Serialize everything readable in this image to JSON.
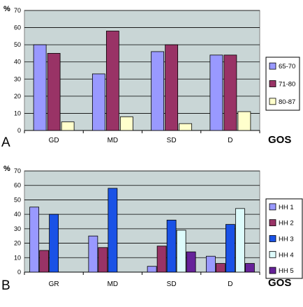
{
  "chart_data": [
    {
      "type": "bar",
      "panel_label": "A",
      "ylabel": "%",
      "xlabel": "GOS",
      "ylim": [
        0,
        70
      ],
      "yticks": [
        0,
        10,
        20,
        30,
        40,
        50,
        60,
        70
      ],
      "grid": true,
      "legend_position": "right",
      "categories": [
        "GD",
        "MD",
        "SD",
        "D"
      ],
      "series": [
        {
          "name": "65-70",
          "color": "#9999ff",
          "values": [
            50,
            33,
            46,
            44
          ]
        },
        {
          "name": "71-80",
          "color": "#993366",
          "values": [
            45,
            58,
            50,
            44
          ]
        },
        {
          "name": "80-87",
          "color": "#ffffcc",
          "values": [
            5,
            8,
            4,
            11
          ]
        }
      ]
    },
    {
      "type": "bar",
      "panel_label": "B",
      "ylabel": "%",
      "xlabel": "GOS",
      "ylim": [
        0,
        70
      ],
      "yticks": [
        0,
        10,
        20,
        30,
        40,
        50,
        60,
        70
      ],
      "grid": true,
      "legend_position": "right",
      "categories": [
        "GR",
        "MD",
        "SD",
        "D"
      ],
      "series": [
        {
          "name": "HH 1",
          "color": "#9999ff",
          "values": [
            45,
            25,
            4,
            11
          ]
        },
        {
          "name": "HH 2",
          "color": "#993366",
          "values": [
            15,
            17,
            18,
            6
          ]
        },
        {
          "name": "HH 3",
          "color": "#1a52e6",
          "values": [
            40,
            58,
            36,
            33
          ]
        },
        {
          "name": "HH 4",
          "color": "#ddfbfb",
          "values": [
            0,
            0,
            29,
            44
          ]
        },
        {
          "name": "HH 5",
          "color": "#662299",
          "values": [
            0,
            0,
            14,
            6
          ]
        }
      ]
    }
  ]
}
